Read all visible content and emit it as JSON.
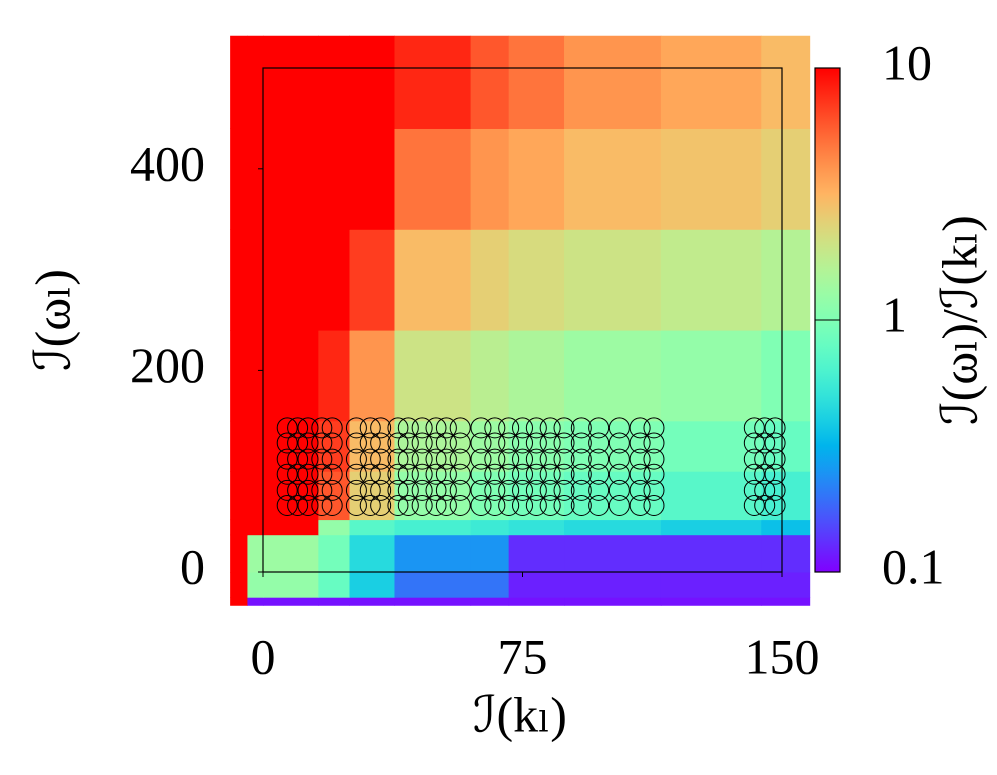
{
  "chart_data": {
    "type": "heatmap_scatter",
    "xlabel": "ℐ(kₗ)",
    "ylabel": "ℐ(ωₗ)",
    "colorbar_label": "ℐ(ωₗ)/ℐ(kₗ)",
    "xlim": [
      0,
      150
    ],
    "ylim": [
      0,
      500
    ],
    "xticks": [
      0,
      75,
      150
    ],
    "yticks": [
      0,
      200,
      400
    ],
    "colormap": "rainbow",
    "zscale": "log",
    "zlim": [
      0.1,
      10
    ],
    "zticks": [
      0.1,
      1,
      10
    ],
    "x_edges": [
      -9.5,
      -4.5,
      0,
      16,
      25,
      38,
      60,
      71,
      87,
      115,
      144,
      158
    ],
    "y_edges": [
      -33,
      -25,
      0,
      37,
      52,
      100,
      150,
      240,
      340,
      440,
      532
    ],
    "z": [
      [
        10,
        0.11,
        0.11,
        0.11,
        0.11,
        0.11,
        0.11,
        0.11,
        0.11,
        0.11,
        0.11
      ],
      [
        10,
        1.2,
        1.2,
        0.8,
        0.4,
        0.2,
        0.2,
        0.12,
        0.12,
        0.12,
        0.12
      ],
      [
        10,
        1.3,
        1.3,
        0.9,
        0.45,
        0.25,
        0.25,
        0.13,
        0.13,
        0.13,
        0.13
      ],
      [
        10,
        10,
        10,
        1.2,
        0.7,
        0.6,
        0.55,
        0.5,
        0.45,
        0.4,
        0.35
      ],
      [
        10,
        10,
        10,
        6,
        2.5,
        1.2,
        1.0,
        0.9,
        0.8,
        0.7,
        0.6
      ],
      [
        10,
        10,
        10,
        7,
        3,
        1.5,
        1.3,
        1.1,
        1.0,
        0.9,
        0.8
      ],
      [
        10,
        10,
        10,
        8,
        4,
        2,
        1.7,
        1.5,
        1.3,
        1.2,
        1.0
      ],
      [
        10,
        10,
        10,
        10,
        7,
        3,
        2.5,
        2.2,
        2,
        1.8,
        1.6
      ],
      [
        10,
        10,
        10,
        10,
        10,
        5,
        4,
        3.5,
        3,
        2.8,
        2.5
      ],
      [
        10,
        10,
        10,
        10,
        10,
        8,
        6,
        5,
        4,
        3.5,
        3
      ]
    ],
    "points": {
      "color": "#000000",
      "x": [
        7,
        7,
        7,
        7,
        7,
        7,
        10,
        10,
        10,
        10,
        10,
        10,
        13,
        13,
        13,
        13,
        13,
        13,
        17,
        17,
        17,
        17,
        17,
        17,
        20,
        20,
        20,
        20,
        20,
        20,
        27,
        27,
        27,
        27,
        27,
        27,
        31,
        31,
        31,
        31,
        31,
        31,
        34,
        34,
        34,
        34,
        34,
        34,
        39,
        39,
        39,
        39,
        39,
        39,
        42,
        42,
        42,
        42,
        42,
        42,
        46,
        46,
        46,
        46,
        46,
        46,
        50,
        50,
        50,
        50,
        50,
        50,
        53,
        53,
        53,
        53,
        53,
        53,
        57,
        57,
        57,
        57,
        57,
        57,
        63,
        63,
        63,
        63,
        63,
        63,
        67,
        67,
        67,
        67,
        67,
        67,
        71,
        71,
        71,
        71,
        71,
        71,
        75,
        75,
        75,
        75,
        75,
        75,
        79,
        79,
        79,
        79,
        79,
        79,
        83,
        83,
        83,
        83,
        83,
        83,
        87,
        87,
        87,
        87,
        87,
        87,
        92,
        92,
        92,
        92,
        92,
        92,
        97,
        97,
        97,
        97,
        97,
        97,
        103,
        103,
        103,
        103,
        103,
        103,
        109,
        109,
        109,
        109,
        109,
        109,
        113,
        113,
        113,
        113,
        113,
        113,
        142,
        142,
        142,
        142,
        142,
        142,
        145,
        145,
        145,
        145,
        145,
        145,
        148,
        148,
        148,
        148,
        148,
        148
      ],
      "y": [
        66,
        81,
        97,
        112,
        128,
        143,
        66,
        81,
        97,
        112,
        128,
        143,
        66,
        81,
        97,
        112,
        128,
        143,
        66,
        81,
        97,
        112,
        128,
        143,
        66,
        81,
        97,
        112,
        128,
        143,
        66,
        81,
        97,
        112,
        128,
        143,
        66,
        81,
        97,
        112,
        128,
        143,
        66,
        81,
        97,
        112,
        128,
        143,
        66,
        81,
        97,
        112,
        128,
        143,
        66,
        81,
        97,
        112,
        128,
        143,
        66,
        81,
        97,
        112,
        128,
        143,
        66,
        81,
        97,
        112,
        128,
        143,
        66,
        81,
        97,
        112,
        128,
        143,
        66,
        81,
        97,
        112,
        128,
        143,
        66,
        81,
        97,
        112,
        128,
        143,
        66,
        81,
        97,
        112,
        128,
        143,
        66,
        81,
        97,
        112,
        128,
        143,
        66,
        81,
        97,
        112,
        128,
        143,
        66,
        81,
        97,
        112,
        128,
        143,
        66,
        81,
        97,
        112,
        128,
        143,
        66,
        81,
        97,
        112,
        128,
        143,
        66,
        81,
        97,
        112,
        128,
        143,
        66,
        81,
        97,
        112,
        128,
        143,
        66,
        81,
        97,
        112,
        128,
        143,
        66,
        81,
        97,
        112,
        128,
        143,
        66,
        81,
        97,
        112,
        128,
        143,
        66,
        81,
        97,
        112,
        128,
        143,
        66,
        81,
        97,
        112,
        128,
        143,
        66,
        81,
        97,
        112,
        128,
        143
      ]
    }
  }
}
